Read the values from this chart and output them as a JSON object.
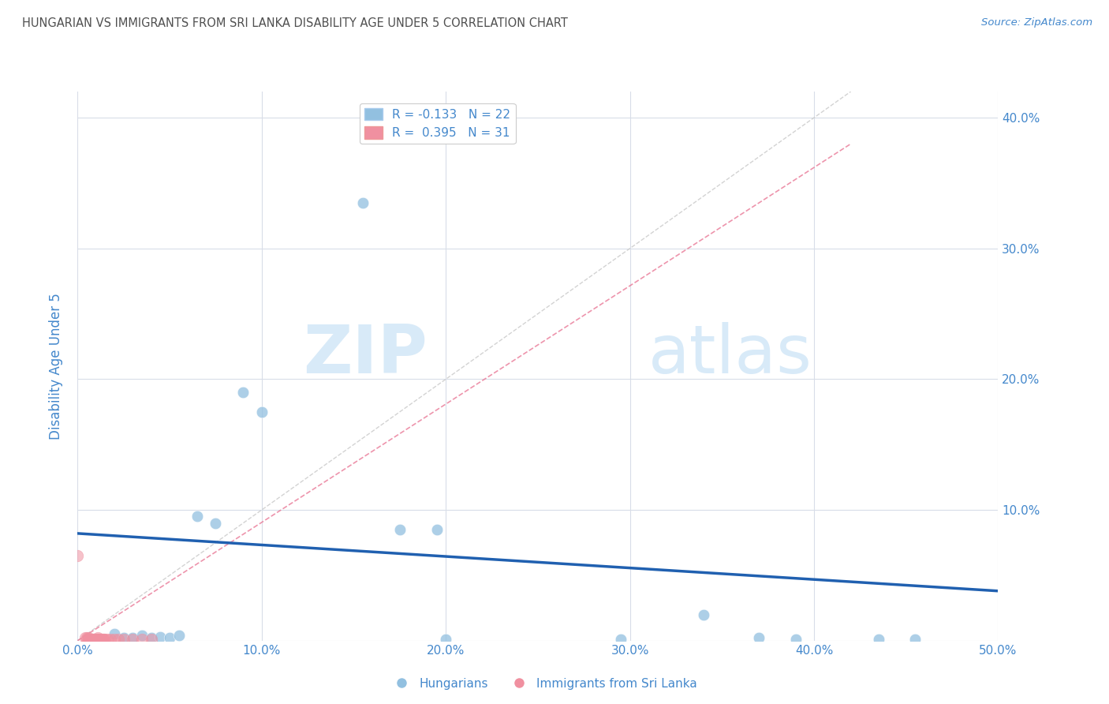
{
  "title": "HUNGARIAN VS IMMIGRANTS FROM SRI LANKA DISABILITY AGE UNDER 5 CORRELATION CHART",
  "source": "Source: ZipAtlas.com",
  "ylabel": "Disability Age Under 5",
  "xlim": [
    0.0,
    0.5
  ],
  "ylim": [
    0.0,
    0.42
  ],
  "xticks": [
    0.0,
    0.1,
    0.2,
    0.3,
    0.4,
    0.5
  ],
  "yticks": [
    0.0,
    0.1,
    0.2,
    0.3,
    0.4
  ],
  "legend_entries": [
    {
      "label": "R = -0.133   N = 22",
      "color": "#a8c8e8"
    },
    {
      "label": "R =  0.395   N = 31",
      "color": "#f4a0b0"
    }
  ],
  "blue_scatter": [
    [
      0.02,
      0.005
    ],
    [
      0.025,
      0.002
    ],
    [
      0.03,
      0.002
    ],
    [
      0.035,
      0.004
    ],
    [
      0.04,
      0.002
    ],
    [
      0.045,
      0.003
    ],
    [
      0.05,
      0.002
    ],
    [
      0.055,
      0.004
    ],
    [
      0.065,
      0.095
    ],
    [
      0.075,
      0.09
    ],
    [
      0.09,
      0.19
    ],
    [
      0.1,
      0.175
    ],
    [
      0.155,
      0.335
    ],
    [
      0.175,
      0.085
    ],
    [
      0.195,
      0.085
    ],
    [
      0.2,
      0.001
    ],
    [
      0.295,
      0.001
    ],
    [
      0.34,
      0.02
    ],
    [
      0.37,
      0.002
    ],
    [
      0.39,
      0.001
    ],
    [
      0.435,
      0.001
    ],
    [
      0.455,
      0.001
    ]
  ],
  "pink_scatter": [
    [
      0.0,
      0.065
    ],
    [
      0.004,
      0.002
    ],
    [
      0.005,
      0.002
    ],
    [
      0.005,
      0.001
    ],
    [
      0.006,
      0.001
    ],
    [
      0.006,
      0.002
    ],
    [
      0.007,
      0.001
    ],
    [
      0.007,
      0.001
    ],
    [
      0.008,
      0.001
    ],
    [
      0.008,
      0.001
    ],
    [
      0.009,
      0.001
    ],
    [
      0.009,
      0.001
    ],
    [
      0.01,
      0.001
    ],
    [
      0.01,
      0.001
    ],
    [
      0.01,
      0.001
    ],
    [
      0.011,
      0.001
    ],
    [
      0.011,
      0.002
    ],
    [
      0.012,
      0.001
    ],
    [
      0.012,
      0.001
    ],
    [
      0.013,
      0.001
    ],
    [
      0.014,
      0.001
    ],
    [
      0.014,
      0.001
    ],
    [
      0.015,
      0.001
    ],
    [
      0.016,
      0.001
    ],
    [
      0.018,
      0.001
    ],
    [
      0.02,
      0.001
    ],
    [
      0.022,
      0.001
    ],
    [
      0.025,
      0.001
    ],
    [
      0.03,
      0.001
    ],
    [
      0.035,
      0.001
    ],
    [
      0.04,
      0.001
    ]
  ],
  "blue_line_x": [
    0.0,
    0.5
  ],
  "blue_line_y": [
    0.082,
    0.038
  ],
  "pink_line_x": [
    0.0,
    0.42
  ],
  "pink_line_y": [
    0.0,
    0.38
  ],
  "scatter_size": 110,
  "blue_color": "#92c0e0",
  "pink_color": "#f090a0",
  "blue_line_color": "#2060b0",
  "pink_line_color": "#e87090",
  "diagonal_color": "#c8c8c8",
  "grid_color": "#d8dde8",
  "background_color": "#ffffff",
  "title_color": "#505050",
  "axis_label_color": "#4488cc",
  "tick_color": "#4488cc",
  "watermark_zip": "ZIP",
  "watermark_atlas": "atlas",
  "watermark_color": "#d8eaf8"
}
